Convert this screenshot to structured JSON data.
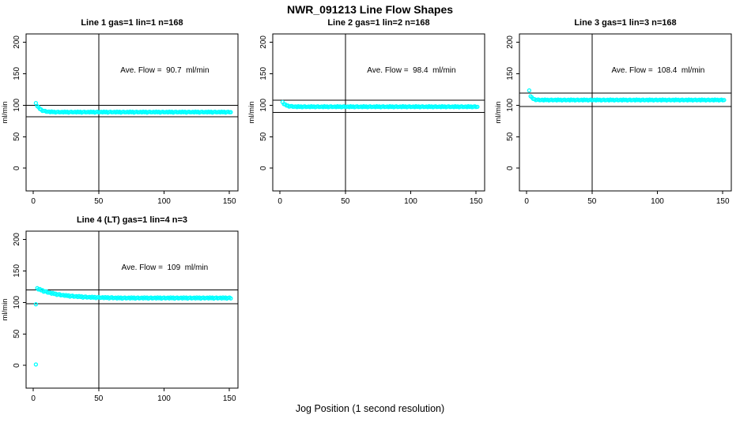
{
  "figure": {
    "title": "NWR_091213  Line Flow Shapes",
    "xlabel": "Jog Position (1 second resolution)"
  },
  "colors": {
    "points": "#00FFFF",
    "axis": "#000000",
    "background": "#FFFFFF"
  },
  "chart_data": {
    "type": "scatter",
    "title": "NWR_091213  Line Flow Shapes",
    "xlabel": "Jog Position (1 second resolution)",
    "ylabel": "ml/min",
    "x_ticks": [
      0,
      50,
      100,
      150
    ],
    "y_ticks": [
      0,
      50,
      100,
      150,
      200
    ],
    "xlim": [
      -5.5,
      156.5
    ],
    "ylim": [
      -36,
      213
    ],
    "grid": false,
    "point_color": "#00FFFF",
    "annotation_anchor": {
      "x": 100.5,
      "y": 152
    },
    "plots": [
      {
        "title": "Line 1 gas=1 lin=1 n=168",
        "annotation": "Ave. Flow =  90.7  ml/min",
        "ave_flow": 90.7,
        "hlines": [
          99.8,
          81.6
        ],
        "vline": 50,
        "row": 0,
        "col": 0,
        "x_start": 2,
        "x_step": 1,
        "y": [
          103.4,
          98.5,
          96.9,
          94.0,
          93.2,
          90.9,
          91.0,
          91.0,
          89.6,
          89.6,
          89.9,
          88.9,
          90.0,
          89.0,
          89.6,
          88.4,
          89.1,
          89.6,
          88.6,
          88.9,
          89.4,
          88.5,
          89.7,
          88.8,
          89.5,
          88.3,
          89.1,
          89.6,
          88.6,
          88.9,
          89.4,
          88.5,
          89.7,
          88.8,
          89.5,
          88.3,
          89.1,
          89.6,
          88.6,
          88.9,
          89.4,
          88.5,
          89.7,
          88.8,
          89.5,
          88.3,
          89.1,
          89.6,
          88.6,
          88.9,
          89.4,
          88.5,
          89.7,
          88.8,
          89.5,
          88.3,
          89.1,
          89.6,
          88.6,
          88.9,
          89.4,
          88.5,
          89.7,
          88.8,
          89.5,
          88.3,
          89.1,
          89.6,
          88.6,
          88.9,
          89.4,
          88.5,
          89.7,
          88.8,
          89.5,
          88.3,
          89.1,
          89.6,
          88.6,
          88.9,
          89.4,
          88.5,
          89.7,
          88.8,
          89.5,
          88.3,
          89.1,
          89.6,
          88.6,
          88.9,
          89.4,
          88.5,
          89.7,
          88.8,
          89.5,
          88.3,
          89.1,
          89.6,
          88.6,
          88.9,
          89.4,
          88.5,
          89.7,
          88.8,
          89.5,
          88.3,
          89.1,
          89.6,
          88.6,
          88.9,
          89.4,
          88.5,
          89.7,
          88.8,
          89.5,
          88.3,
          89.1,
          89.6,
          88.6,
          88.9,
          89.4,
          88.5,
          89.7,
          88.8,
          89.5,
          88.3,
          89.1,
          89.6,
          88.6,
          88.9,
          89.4,
          88.5,
          89.7,
          88.8,
          89.5,
          88.3,
          89.1,
          89.6,
          88.6,
          88.9,
          89.4,
          88.5,
          89.7,
          88.8,
          89.5,
          88.3,
          89.1,
          89.6,
          88.6,
          88.9
        ],
        "extra_points": []
      },
      {
        "title": "Line 2 gas=1 lin=2 n=168",
        "annotation": "Ave. Flow =  98.4  ml/min",
        "ave_flow": 98.4,
        "hlines": [
          108.2,
          88.6
        ],
        "vline": 50,
        "row": 0,
        "col": 1,
        "x_start": 2,
        "x_step": 1,
        "y": [
          104.9,
          101.7,
          101.3,
          99.4,
          99.4,
          97.7,
          98.2,
          98.6,
          97.4,
          97.6,
          98.0,
          97.0,
          98.2,
          97.3,
          98.0,
          96.8,
          97.6,
          98.1,
          97.1,
          97.4,
          97.9,
          97.0,
          98.2,
          97.3,
          98.0,
          96.8,
          97.6,
          98.1,
          97.1,
          97.4,
          97.9,
          97.0,
          98.2,
          97.3,
          98.0,
          96.8,
          97.6,
          98.1,
          97.1,
          97.4,
          97.9,
          97.0,
          98.2,
          97.3,
          98.0,
          96.8,
          97.6,
          98.1,
          97.1,
          97.4,
          97.9,
          97.0,
          98.2,
          97.3,
          98.0,
          96.8,
          97.6,
          98.1,
          97.1,
          97.4,
          97.9,
          97.0,
          98.2,
          97.3,
          98.0,
          96.8,
          97.6,
          98.1,
          97.1,
          97.4,
          97.9,
          97.0,
          98.2,
          97.3,
          98.0,
          96.8,
          97.6,
          98.1,
          97.1,
          97.4,
          97.9,
          97.0,
          98.2,
          97.3,
          98.0,
          96.8,
          97.6,
          98.1,
          97.1,
          97.4,
          97.9,
          97.0,
          98.2,
          97.3,
          98.0,
          96.8,
          97.6,
          98.1,
          97.1,
          97.4,
          97.9,
          97.0,
          98.2,
          97.3,
          98.0,
          96.8,
          97.6,
          98.1,
          97.1,
          97.4,
          97.9,
          97.0,
          98.2,
          97.3,
          98.0,
          96.8,
          97.6,
          98.1,
          97.1,
          97.4,
          97.9,
          97.0,
          98.2,
          97.3,
          98.0,
          96.8,
          97.6,
          98.1,
          97.1,
          97.4,
          97.9,
          97.0,
          98.2,
          97.3,
          98.0,
          96.8,
          97.6,
          98.1,
          97.1,
          97.4,
          97.9,
          97.0,
          98.2,
          97.3,
          98.0,
          96.8,
          97.6,
          98.1,
          97.1,
          97.4
        ],
        "extra_points": []
      },
      {
        "title": "Line 3 gas=1 lin=3 n=168",
        "annotation": "Ave. Flow =  108.4  ml/min",
        "ave_flow": 108.4,
        "hlines": [
          119.2,
          97.6
        ],
        "vline": 50,
        "row": 0,
        "col": 2,
        "x_start": 2,
        "x_step": 1,
        "y": [
          123.4,
          114.2,
          112.4,
          109.9,
          109.7,
          108.0,
          108.6,
          109.0,
          107.9,
          108.1,
          108.6,
          107.7,
          108.9,
          108.0,
          108.7,
          107.5,
          108.3,
          108.8,
          107.8,
          108.1,
          108.6,
          107.7,
          108.9,
          108.0,
          108.7,
          107.5,
          108.3,
          108.8,
          107.8,
          108.1,
          108.6,
          107.7,
          108.9,
          108.0,
          108.7,
          107.5,
          108.3,
          108.8,
          107.8,
          108.1,
          108.6,
          107.7,
          108.9,
          108.0,
          108.7,
          107.5,
          108.3,
          108.8,
          107.8,
          108.1,
          108.6,
          107.7,
          108.9,
          108.0,
          108.7,
          107.5,
          108.3,
          108.8,
          107.8,
          108.1,
          108.6,
          107.7,
          108.9,
          108.0,
          108.7,
          107.5,
          108.3,
          108.8,
          107.8,
          108.1,
          108.6,
          107.7,
          108.9,
          108.0,
          108.7,
          107.5,
          108.3,
          108.8,
          107.8,
          108.1,
          108.6,
          107.7,
          108.9,
          108.0,
          108.7,
          107.5,
          108.3,
          108.8,
          107.8,
          108.1,
          108.6,
          107.7,
          108.9,
          108.0,
          108.7,
          107.5,
          108.3,
          108.8,
          107.8,
          108.1,
          108.6,
          107.7,
          108.9,
          108.0,
          108.7,
          107.5,
          108.3,
          108.8,
          107.8,
          108.1,
          108.6,
          107.7,
          108.9,
          108.0,
          108.7,
          107.5,
          108.3,
          108.8,
          107.8,
          108.1,
          108.6,
          107.7,
          108.9,
          108.0,
          108.7,
          107.5,
          108.3,
          108.8,
          107.8,
          108.1,
          108.6,
          107.7,
          108.9,
          108.0,
          108.7,
          107.5,
          108.3,
          108.8,
          107.8,
          108.1,
          108.6,
          107.7,
          108.9,
          108.0,
          108.7,
          107.5,
          108.3,
          108.8,
          107.8,
          108.1
        ],
        "extra_points": []
      },
      {
        "title": "Line 4 (LT) gas=1 lin=4 n=3",
        "annotation": "Ave. Flow =  109  ml/min",
        "ave_flow": 109,
        "hlines": [
          119.9,
          98.1
        ],
        "vline": 50,
        "row": 1,
        "col": 0,
        "x_start": 3,
        "x_step": 1,
        "y": [
          122.5,
          120.4,
          121.1,
          119.1,
          119.4,
          117.0,
          117.5,
          117.5,
          115.5,
          115.4,
          115.5,
          113.8,
          115.0,
          113.4,
          114.0,
          111.9,
          112.7,
          113.0,
          111.3,
          111.5,
          111.8,
          110.4,
          111.7,
          110.3,
          111.1,
          109.2,
          110.2,
          110.6,
          109.0,
          109.4,
          109.9,
          108.5,
          110.0,
          108.6,
          109.5,
          107.7,
          108.8,
          109.3,
          107.8,
          108.2,
          108.7,
          107.4,
          109.0,
          107.7,
          108.6,
          106.8,
          108.0,
          108.5,
          107.1,
          107.5,
          108.1,
          106.8,
          108.4,
          107.1,
          108.1,
          106.4,
          107.5,
          108.1,
          106.7,
          107.1,
          107.5,
          106.3,
          107.9,
          106.7,
          107.7,
          106.0,
          107.2,
          107.8,
          106.4,
          106.9,
          107.5,
          106.3,
          107.9,
          106.7,
          107.7,
          106.0,
          107.2,
          107.8,
          106.4,
          106.9,
          107.5,
          106.3,
          107.9,
          106.7,
          107.7,
          106.0,
          107.2,
          107.8,
          106.4,
          106.9,
          107.5,
          106.3,
          107.9,
          106.7,
          107.7,
          106.0,
          107.2,
          107.8,
          106.4,
          106.9,
          107.5,
          106.3,
          107.9,
          106.7,
          107.7,
          106.0,
          107.2,
          107.8,
          106.4,
          106.9,
          107.5,
          106.3,
          107.9,
          106.7,
          107.7,
          106.0,
          107.2,
          107.8,
          106.4,
          106.9,
          107.5,
          106.3,
          107.9,
          106.7,
          107.7,
          106.0,
          107.2,
          107.8,
          106.4,
          106.9,
          107.5,
          106.3,
          107.9,
          106.7,
          107.7,
          106.0,
          107.2,
          107.8,
          106.4,
          106.9,
          107.5,
          106.3,
          107.9,
          106.7,
          107.7,
          106.0,
          107.2,
          107.8,
          106.4
        ],
        "extra_points": [
          [
            2,
            97
          ],
          [
            2,
            1.5
          ]
        ]
      }
    ]
  }
}
